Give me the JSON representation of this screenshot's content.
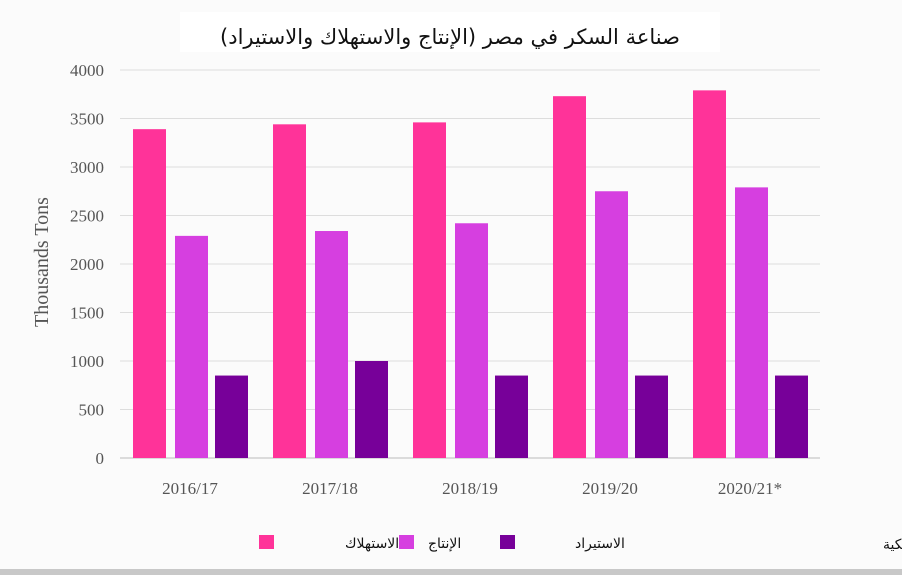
{
  "chart_data": {
    "type": "bar",
    "title": "صناعة السكر في مصر  (الإنتاج والاستهلاك والاستيراد)",
    "ylabel": "Thousands Tons",
    "xlabel": "",
    "ylim": [
      0,
      4000
    ],
    "yticks": [
      0,
      500,
      1000,
      1500,
      2000,
      2500,
      3000,
      3500,
      4000
    ],
    "grid": true,
    "legend_position": "bottom",
    "categories": [
      "2016/17",
      "2017/18",
      "2018/19",
      "2019/20",
      "2020/21*"
    ],
    "series": [
      {
        "name": "الاستهلاك",
        "color": "#ff3399",
        "values": [
          3390,
          3440,
          3460,
          3730,
          3790
        ]
      },
      {
        "name": "الإنتاج",
        "color": "#d63fe0",
        "values": [
          2290,
          2340,
          2420,
          2750,
          2790
        ]
      },
      {
        "name": "الاستيراد",
        "color": "#770099",
        "values": [
          850,
          1000,
          850,
          850,
          850
        ]
      }
    ],
    "source": "المصدر : وزارة الزراعة الأمريكية"
  }
}
